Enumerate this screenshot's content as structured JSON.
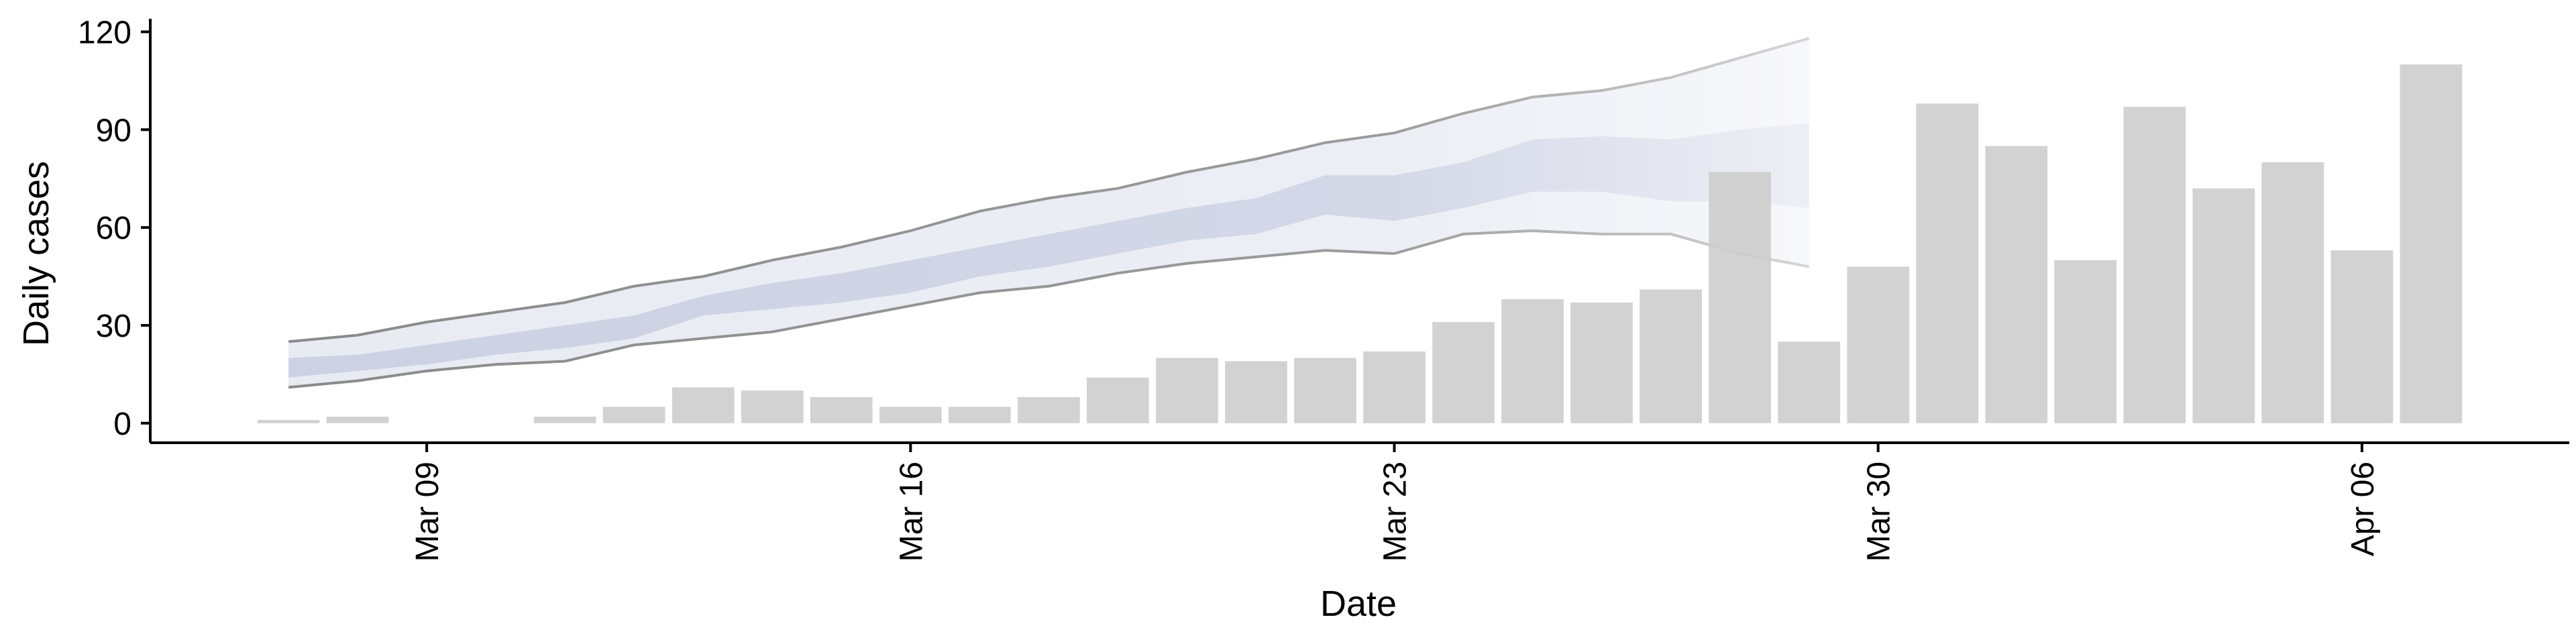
{
  "chart_data": {
    "type": "bar",
    "xlabel": "Date",
    "ylabel": "Daily cases",
    "ylim": [
      -6,
      124
    ],
    "yticks": [
      0,
      30,
      60,
      90,
      120
    ],
    "xticks": [
      {
        "date": "2020-03-09",
        "label": "Mar 09"
      },
      {
        "date": "2020-03-16",
        "label": "Mar 16"
      },
      {
        "date": "2020-03-23",
        "label": "Mar 23"
      },
      {
        "date": "2020-03-30",
        "label": "Mar 30"
      },
      {
        "date": "2020-04-06",
        "label": "Apr 06"
      }
    ],
    "xlim": [
      "2020-03-05",
      "2020-04-09"
    ],
    "grid": false,
    "colors": {
      "bars": "#cccccc",
      "band_outer": "#e9ebf3",
      "band_inner": "#ccd1e3",
      "bound_lines": "#8a8a8a"
    },
    "bars": [
      {
        "date": "2020-03-07",
        "value": 1
      },
      {
        "date": "2020-03-08",
        "value": 2
      },
      {
        "date": "2020-03-11",
        "value": 2
      },
      {
        "date": "2020-03-12",
        "value": 5
      },
      {
        "date": "2020-03-13",
        "value": 11
      },
      {
        "date": "2020-03-14",
        "value": 10
      },
      {
        "date": "2020-03-15",
        "value": 8
      },
      {
        "date": "2020-03-16",
        "value": 5
      },
      {
        "date": "2020-03-17",
        "value": 5
      },
      {
        "date": "2020-03-18",
        "value": 8
      },
      {
        "date": "2020-03-19",
        "value": 14
      },
      {
        "date": "2020-03-20",
        "value": 20
      },
      {
        "date": "2020-03-21",
        "value": 19
      },
      {
        "date": "2020-03-22",
        "value": 20
      },
      {
        "date": "2020-03-23",
        "value": 22
      },
      {
        "date": "2020-03-24",
        "value": 31
      },
      {
        "date": "2020-03-25",
        "value": 38
      },
      {
        "date": "2020-03-26",
        "value": 37
      },
      {
        "date": "2020-03-27",
        "value": 41
      },
      {
        "date": "2020-03-28",
        "value": 77
      },
      {
        "date": "2020-03-29",
        "value": 25
      },
      {
        "date": "2020-03-30",
        "value": 48
      },
      {
        "date": "2020-03-31",
        "value": 98
      },
      {
        "date": "2020-04-01",
        "value": 85
      },
      {
        "date": "2020-04-02",
        "value": 50
      },
      {
        "date": "2020-04-03",
        "value": 97
      },
      {
        "date": "2020-04-04",
        "value": 72
      },
      {
        "date": "2020-04-05",
        "value": 80
      },
      {
        "date": "2020-04-06",
        "value": 53
      },
      {
        "date": "2020-04-07",
        "value": 110
      }
    ],
    "ribbon": [
      {
        "date": "2020-03-07",
        "lower90": 11,
        "lower50": 14,
        "upper50": 20,
        "upper90": 25
      },
      {
        "date": "2020-03-08",
        "lower90": 13,
        "lower50": 16,
        "upper50": 21,
        "upper90": 27
      },
      {
        "date": "2020-03-09",
        "lower90": 16,
        "lower50": 18,
        "upper50": 24,
        "upper90": 31
      },
      {
        "date": "2020-03-10",
        "lower90": 18,
        "lower50": 21,
        "upper50": 27,
        "upper90": 34
      },
      {
        "date": "2020-03-11",
        "lower90": 19,
        "lower50": 23,
        "upper50": 30,
        "upper90": 37
      },
      {
        "date": "2020-03-12",
        "lower90": 24,
        "lower50": 26,
        "upper50": 33,
        "upper90": 42
      },
      {
        "date": "2020-03-13",
        "lower90": 26,
        "lower50": 33,
        "upper50": 39,
        "upper90": 45
      },
      {
        "date": "2020-03-14",
        "lower90": 28,
        "lower50": 35,
        "upper50": 43,
        "upper90": 50
      },
      {
        "date": "2020-03-15",
        "lower90": 32,
        "lower50": 37,
        "upper50": 46,
        "upper90": 54
      },
      {
        "date": "2020-03-16",
        "lower90": 36,
        "lower50": 40,
        "upper50": 50,
        "upper90": 59
      },
      {
        "date": "2020-03-17",
        "lower90": 40,
        "lower50": 45,
        "upper50": 54,
        "upper90": 65
      },
      {
        "date": "2020-03-18",
        "lower90": 42,
        "lower50": 48,
        "upper50": 58,
        "upper90": 69
      },
      {
        "date": "2020-03-19",
        "lower90": 46,
        "lower50": 52,
        "upper50": 62,
        "upper90": 72
      },
      {
        "date": "2020-03-20",
        "lower90": 49,
        "lower50": 56,
        "upper50": 66,
        "upper90": 77
      },
      {
        "date": "2020-03-21",
        "lower90": 51,
        "lower50": 58,
        "upper50": 69,
        "upper90": 81
      },
      {
        "date": "2020-03-22",
        "lower90": 53,
        "lower50": 64,
        "upper50": 76,
        "upper90": 86
      },
      {
        "date": "2020-03-23",
        "lower90": 52,
        "lower50": 62,
        "upper50": 76,
        "upper90": 89
      },
      {
        "date": "2020-03-24",
        "lower90": 58,
        "lower50": 66,
        "upper50": 80,
        "upper90": 95
      },
      {
        "date": "2020-03-25",
        "lower90": 59,
        "lower50": 71,
        "upper50": 87,
        "upper90": 100
      },
      {
        "date": "2020-03-26",
        "lower90": 58,
        "lower50": 71,
        "upper50": 88,
        "upper90": 102
      },
      {
        "date": "2020-03-27",
        "lower90": 58,
        "lower50": 68,
        "upper50": 87,
        "upper90": 106
      },
      {
        "date": "2020-03-28",
        "lower90": 52,
        "lower50": 68,
        "upper50": 90,
        "upper90": 112
      },
      {
        "date": "2020-03-29",
        "lower90": 48,
        "lower50": 66,
        "upper50": 92,
        "upper90": 118
      }
    ]
  }
}
